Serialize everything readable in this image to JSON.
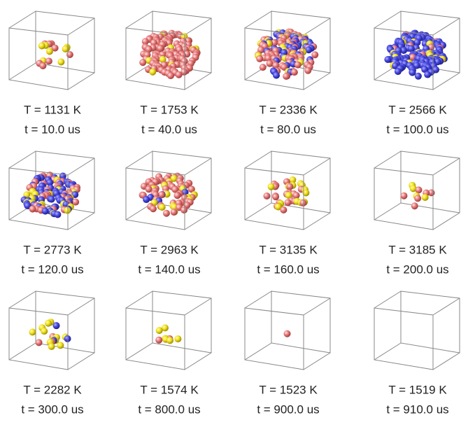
{
  "panels": [
    {
      "temperature": "T =  1131 K",
      "time": "t = 10.0 us"
    },
    {
      "temperature": "T =  1753 K",
      "time": "t = 40.0 us"
    },
    {
      "temperature": "T =  2336 K",
      "time": "t = 80.0 us"
    },
    {
      "temperature": "T =  2566 K",
      "time": "t = 100.0 us"
    },
    {
      "temperature": "T =  2773 K",
      "time": "t = 120.0 us"
    },
    {
      "temperature": "T =  2963 K",
      "time": "t = 140.0 us"
    },
    {
      "temperature": "T =  3135 K",
      "time": "t = 160.0 us"
    },
    {
      "temperature": "T =  3185 K",
      "time": "t = 200.0 us"
    },
    {
      "temperature": "T =  2282 K",
      "time": "t = 300.0 us"
    },
    {
      "temperature": "T =  1574 K",
      "time": "t = 800.0 us"
    },
    {
      "temperature": "T =  1523 K",
      "time": "t = 900.0 us"
    },
    {
      "temperature": "T =  1519 K",
      "time": "t = 910.0 us"
    }
  ]
}
